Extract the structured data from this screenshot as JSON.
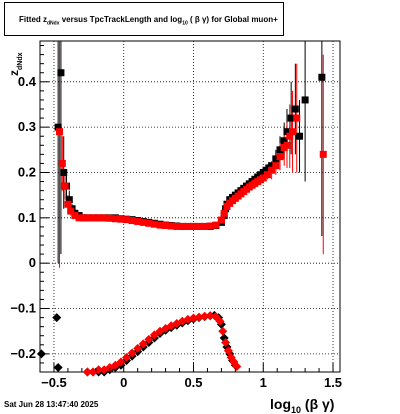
{
  "chart_data": {
    "type": "scatter",
    "title_parts": [
      "Fitted  z",
      "dNdx",
      "  versus TpcTrackLength and log",
      "10",
      " ( β γ) for Global muon+"
    ],
    "ylabel_main": "z",
    "ylabel_sub": "dNdx",
    "xlabel_main": "log",
    "xlabel_sub": "10",
    "xlabel_tail": " (β γ)",
    "xlim": [
      -0.6,
      1.55
    ],
    "ylim": [
      -0.24,
      0.49
    ],
    "x_ticks": [
      -0.5,
      0,
      0.5,
      1,
      1.5
    ],
    "x_tick_labels": [
      "−0.5",
      "0",
      "0.5",
      "1",
      "1.5"
    ],
    "y_ticks": [
      -0.2,
      -0.1,
      0,
      0.1,
      0.2,
      0.3,
      0.4
    ],
    "y_tick_labels": [
      "−0.2",
      "−0.1",
      "0",
      "0.1",
      "0.2",
      "0.3",
      "0.4"
    ],
    "grid": true,
    "series": [
      {
        "color": "#000000",
        "marker": "square",
        "points": [
          [
            -0.47,
            0.3,
            0.3
          ],
          [
            -0.45,
            0.42,
            0.4
          ],
          [
            -0.43,
            0.2,
            0.08
          ],
          [
            -0.41,
            0.17,
            0.03
          ],
          [
            -0.39,
            0.14,
            0.02
          ],
          [
            -0.37,
            0.12,
            0.01
          ],
          [
            -0.35,
            0.11,
            0
          ],
          [
            -0.32,
            0.105,
            0
          ],
          [
            -0.29,
            0.1,
            0
          ],
          [
            -0.26,
            0.1,
            0
          ],
          [
            -0.22,
            0.1,
            0
          ],
          [
            -0.18,
            0.1,
            0
          ],
          [
            -0.14,
            0.1,
            0
          ],
          [
            -0.1,
            0.1,
            0
          ],
          [
            -0.06,
            0.1,
            0
          ],
          [
            -0.02,
            0.098,
            0
          ],
          [
            0.02,
            0.097,
            0
          ],
          [
            0.06,
            0.096,
            0
          ],
          [
            0.1,
            0.094,
            0
          ],
          [
            0.14,
            0.092,
            0
          ],
          [
            0.18,
            0.09,
            0
          ],
          [
            0.22,
            0.088,
            0
          ],
          [
            0.26,
            0.086,
            0
          ],
          [
            0.3,
            0.084,
            0
          ],
          [
            0.34,
            0.083,
            0
          ],
          [
            0.38,
            0.082,
            0
          ],
          [
            0.42,
            0.081,
            0
          ],
          [
            0.46,
            0.081,
            0
          ],
          [
            0.5,
            0.081,
            0
          ],
          [
            0.54,
            0.081,
            0
          ],
          [
            0.58,
            0.081,
            0
          ],
          [
            0.62,
            0.081,
            0
          ],
          [
            0.66,
            0.083,
            0
          ],
          [
            0.7,
            0.09,
            0
          ],
          [
            0.72,
            0.105,
            0
          ],
          [
            0.73,
            0.12,
            0
          ],
          [
            0.74,
            0.13,
            0
          ],
          [
            0.76,
            0.14,
            0
          ],
          [
            0.78,
            0.145,
            0
          ],
          [
            0.8,
            0.15,
            0
          ],
          [
            0.82,
            0.155,
            0
          ],
          [
            0.84,
            0.16,
            0
          ],
          [
            0.86,
            0.165,
            0
          ],
          [
            0.88,
            0.17,
            0
          ],
          [
            0.9,
            0.175,
            0
          ],
          [
            0.92,
            0.18,
            0
          ],
          [
            0.94,
            0.185,
            0
          ],
          [
            0.96,
            0.19,
            0
          ],
          [
            0.98,
            0.195,
            0
          ],
          [
            1.0,
            0.2,
            0
          ],
          [
            1.02,
            0.205,
            0
          ],
          [
            1.04,
            0.21,
            0
          ],
          [
            1.06,
            0.215,
            0
          ],
          [
            1.09,
            0.23,
            0.02
          ],
          [
            1.12,
            0.25,
            0.03
          ],
          [
            1.15,
            0.27,
            0.04
          ],
          [
            1.17,
            0.29,
            0.05
          ],
          [
            1.2,
            0.32,
            0.08
          ],
          [
            1.23,
            0.34,
            0.1
          ],
          [
            1.26,
            0.28,
            0.08
          ],
          [
            1.3,
            0.36,
            0.18
          ],
          [
            1.42,
            0.41,
            0.35
          ]
        ]
      },
      {
        "color": "#000000",
        "marker": "diamond",
        "points": [
          [
            -0.59,
            -0.2,
            0
          ],
          [
            -0.48,
            -0.12,
            0
          ],
          [
            -0.47,
            -0.23,
            0
          ],
          [
            -0.26,
            -0.24,
            0
          ],
          [
            -0.22,
            -0.24,
            0
          ],
          [
            -0.18,
            -0.24,
            0
          ],
          [
            -0.14,
            -0.24,
            0
          ],
          [
            -0.1,
            -0.235,
            0
          ],
          [
            -0.06,
            -0.23,
            0
          ],
          [
            -0.02,
            -0.225,
            0
          ],
          [
            0.02,
            -0.215,
            0
          ],
          [
            0.06,
            -0.205,
            0
          ],
          [
            0.1,
            -0.195,
            0
          ],
          [
            0.14,
            -0.185,
            0
          ],
          [
            0.18,
            -0.175,
            0
          ],
          [
            0.22,
            -0.165,
            0
          ],
          [
            0.26,
            -0.155,
            0
          ],
          [
            0.3,
            -0.148,
            0
          ],
          [
            0.34,
            -0.142,
            0
          ],
          [
            0.38,
            -0.137,
            0
          ],
          [
            0.42,
            -0.132,
            0
          ],
          [
            0.46,
            -0.127,
            0
          ],
          [
            0.5,
            -0.123,
            0
          ],
          [
            0.54,
            -0.12,
            0
          ],
          [
            0.58,
            -0.118,
            0
          ],
          [
            0.62,
            -0.116,
            0
          ],
          [
            0.65,
            -0.115,
            0
          ],
          [
            0.68,
            -0.12,
            0
          ],
          [
            0.7,
            -0.135,
            0
          ],
          [
            0.72,
            -0.165,
            0
          ],
          [
            0.74,
            -0.185,
            0
          ],
          [
            0.76,
            -0.2,
            0
          ],
          [
            0.78,
            -0.215,
            0
          ],
          [
            0.8,
            -0.225,
            0
          ]
        ]
      },
      {
        "color": "#ff0000",
        "marker": "square",
        "points": [
          [
            -0.46,
            0.29,
            0.3
          ],
          [
            -0.44,
            0.22,
            0.06
          ],
          [
            -0.42,
            0.17,
            0.03
          ],
          [
            -0.4,
            0.13,
            0.02
          ],
          [
            -0.38,
            0.115,
            0.01
          ],
          [
            -0.35,
            0.105,
            0
          ],
          [
            -0.32,
            0.1,
            0
          ],
          [
            -0.29,
            0.1,
            0
          ],
          [
            -0.26,
            0.1,
            0
          ],
          [
            -0.22,
            0.1,
            0
          ],
          [
            -0.18,
            0.1,
            0
          ],
          [
            -0.14,
            0.1,
            0
          ],
          [
            -0.1,
            0.099,
            0
          ],
          [
            -0.06,
            0.098,
            0
          ],
          [
            -0.02,
            0.097,
            0
          ],
          [
            0.02,
            0.096,
            0
          ],
          [
            0.06,
            0.094,
            0
          ],
          [
            0.1,
            0.092,
            0
          ],
          [
            0.14,
            0.09,
            0
          ],
          [
            0.18,
            0.088,
            0
          ],
          [
            0.22,
            0.086,
            0
          ],
          [
            0.26,
            0.084,
            0
          ],
          [
            0.3,
            0.083,
            0
          ],
          [
            0.34,
            0.082,
            0
          ],
          [
            0.38,
            0.081,
            0
          ],
          [
            0.42,
            0.081,
            0
          ],
          [
            0.46,
            0.081,
            0
          ],
          [
            0.5,
            0.081,
            0
          ],
          [
            0.54,
            0.081,
            0
          ],
          [
            0.58,
            0.081,
            0
          ],
          [
            0.62,
            0.082,
            0
          ],
          [
            0.66,
            0.084,
            0
          ],
          [
            0.7,
            0.095,
            0
          ],
          [
            0.72,
            0.11,
            0
          ],
          [
            0.74,
            0.125,
            0
          ],
          [
            0.76,
            0.132,
            0
          ],
          [
            0.78,
            0.138,
            0
          ],
          [
            0.8,
            0.143,
            0
          ],
          [
            0.82,
            0.148,
            0
          ],
          [
            0.84,
            0.153,
            0
          ],
          [
            0.86,
            0.158,
            0
          ],
          [
            0.88,
            0.163,
            0
          ],
          [
            0.9,
            0.168,
            0
          ],
          [
            0.92,
            0.172,
            0
          ],
          [
            0.94,
            0.176,
            0
          ],
          [
            0.96,
            0.18,
            0
          ],
          [
            0.98,
            0.184,
            0
          ],
          [
            1.0,
            0.188,
            0
          ],
          [
            1.03,
            0.195,
            0.01
          ],
          [
            1.06,
            0.205,
            0.02
          ],
          [
            1.09,
            0.215,
            0.02
          ],
          [
            1.12,
            0.235,
            0.03
          ],
          [
            1.15,
            0.255,
            0.04
          ],
          [
            1.17,
            0.26,
            0.05
          ],
          [
            1.19,
            0.28,
            0.07
          ],
          [
            1.21,
            0.29,
            0.09
          ],
          [
            1.24,
            0.32,
            0.12
          ],
          [
            1.43,
            0.24,
            0.22
          ]
        ]
      },
      {
        "color": "#ff0000",
        "marker": "diamond",
        "points": [
          [
            -0.26,
            -0.24,
            0
          ],
          [
            -0.22,
            -0.24,
            0
          ],
          [
            -0.18,
            -0.235,
            0
          ],
          [
            -0.14,
            -0.235,
            0
          ],
          [
            -0.1,
            -0.23,
            0
          ],
          [
            -0.06,
            -0.225,
            0
          ],
          [
            -0.02,
            -0.218,
            0
          ],
          [
            0.02,
            -0.208,
            0
          ],
          [
            0.06,
            -0.198,
            0
          ],
          [
            0.1,
            -0.188,
            0
          ],
          [
            0.14,
            -0.178,
            0
          ],
          [
            0.18,
            -0.168,
            0
          ],
          [
            0.22,
            -0.158,
            0
          ],
          [
            0.26,
            -0.15,
            0
          ],
          [
            0.3,
            -0.144,
            0
          ],
          [
            0.34,
            -0.138,
            0
          ],
          [
            0.38,
            -0.133,
            0
          ],
          [
            0.42,
            -0.128,
            0
          ],
          [
            0.46,
            -0.124,
            0
          ],
          [
            0.5,
            -0.121,
            0
          ],
          [
            0.54,
            -0.119,
            0
          ],
          [
            0.58,
            -0.117,
            0
          ],
          [
            0.62,
            -0.116,
            0
          ],
          [
            0.66,
            -0.118,
            0
          ],
          [
            0.69,
            -0.128,
            0
          ],
          [
            0.71,
            -0.15,
            0
          ],
          [
            0.73,
            -0.175,
            0
          ],
          [
            0.75,
            -0.193,
            0
          ],
          [
            0.77,
            -0.208,
            0
          ],
          [
            0.79,
            -0.218,
            0
          ],
          [
            0.81,
            -0.228,
            0
          ]
        ]
      }
    ]
  },
  "datestamp": "Sat Jun 28 13:47:40 2025"
}
